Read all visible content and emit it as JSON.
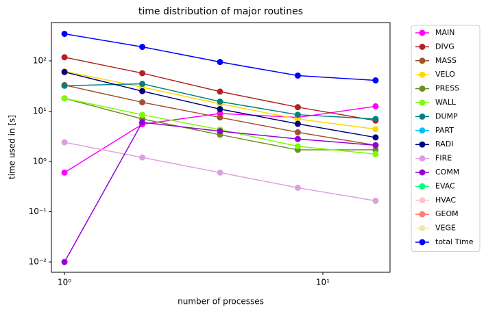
{
  "chart_data": {
    "type": "line",
    "title": "time distribution of major routines",
    "xlabel": "number of processes",
    "ylabel": "time used in [s]",
    "x": [
      1,
      2,
      4,
      8,
      16
    ],
    "xscale": "log",
    "yscale": "log",
    "xlim": [
      0.89,
      18.2
    ],
    "ylim": [
      0.00625,
      578
    ],
    "xticks": [
      {
        "value": 1,
        "label": "10⁰"
      },
      {
        "value": 10,
        "label": "10¹"
      }
    ],
    "yticks": [
      {
        "value": 0.01,
        "label": "10⁻²"
      },
      {
        "value": 0.1,
        "label": "10⁻¹"
      },
      {
        "value": 1,
        "label": "10⁰"
      },
      {
        "value": 10,
        "label": "10¹"
      },
      {
        "value": 100,
        "label": "10²"
      }
    ],
    "grid": false,
    "legend": "outside",
    "series": [
      {
        "name": "MAIN",
        "color": "#ff00ff",
        "values": [
          0.6,
          5.5,
          9,
          7.5,
          12.5
        ]
      },
      {
        "name": "DIVG",
        "color": "#b22222",
        "values": [
          118,
          57,
          24.5,
          12,
          6.5
        ]
      },
      {
        "name": "MASS",
        "color": "#a0522d",
        "values": [
          33,
          15,
          7.5,
          3.8,
          2.1
        ]
      },
      {
        "name": "VELO",
        "color": "#ffd700",
        "values": [
          62,
          30,
          14,
          7,
          4.4
        ]
      },
      {
        "name": "PRESS",
        "color": "#6b8e23",
        "values": [
          18,
          7,
          3.4,
          1.7,
          1.7
        ]
      },
      {
        "name": "WALL",
        "color": "#7cfc00",
        "values": [
          18,
          8.5,
          4.3,
          2,
          1.4
        ]
      },
      {
        "name": "DUMP",
        "color": "#008080",
        "values": [
          32,
          35,
          15.5,
          8.5,
          7
        ]
      },
      {
        "name": "PART",
        "color": "#00bfff",
        "values": [
          null,
          null,
          null,
          null,
          null
        ]
      },
      {
        "name": "RADI",
        "color": "#000080",
        "values": [
          60,
          25,
          11,
          5.6,
          3.0
        ]
      },
      {
        "name": "FIRE",
        "color": "#dda0dd",
        "values": [
          2.4,
          1.2,
          0.6,
          0.3,
          0.165
        ]
      },
      {
        "name": "COMM",
        "color": "#9400d3",
        "values": [
          0.01,
          6,
          4,
          2.8,
          2.1
        ]
      },
      {
        "name": "EVAC",
        "color": "#00ff7f",
        "values": [
          null,
          null,
          null,
          null,
          null
        ]
      },
      {
        "name": "HVAC",
        "color": "#ffc0cb",
        "values": [
          null,
          null,
          null,
          null,
          null
        ]
      },
      {
        "name": "GEOM",
        "color": "#fa8072",
        "values": [
          null,
          null,
          null,
          null,
          null
        ]
      },
      {
        "name": "VEGE",
        "color": "#eee8aa",
        "values": [
          null,
          null,
          null,
          null,
          null
        ]
      },
      {
        "name": "total Time",
        "color": "#0000ff",
        "values": [
          345,
          190,
          95,
          51,
          41
        ]
      }
    ]
  }
}
